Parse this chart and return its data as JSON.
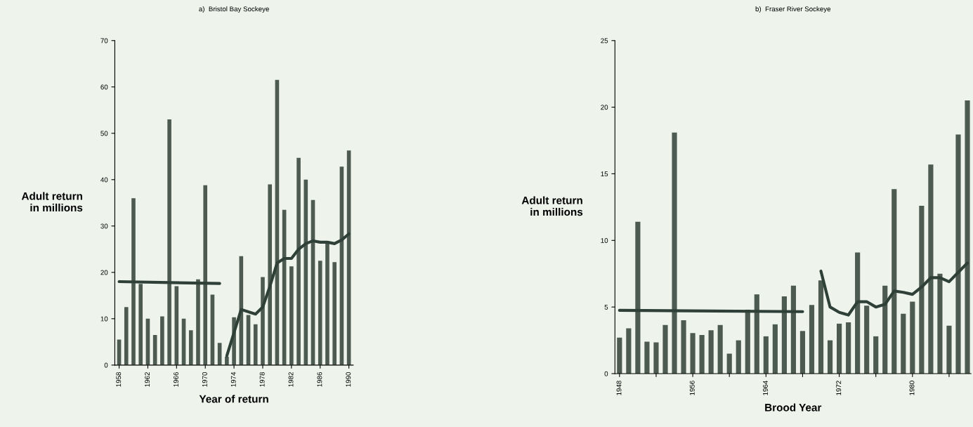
{
  "chart_data": [
    {
      "type": "bar",
      "title": "a)  Bristol Bay Sockeye",
      "xlabel": "Year of return",
      "ylabel": "Adult return\nin millions",
      "x": [
        1958,
        1959,
        1960,
        1961,
        1962,
        1963,
        1964,
        1965,
        1966,
        1967,
        1968,
        1969,
        1970,
        1971,
        1972,
        1973,
        1974,
        1975,
        1976,
        1977,
        1978,
        1979,
        1980,
        1981,
        1982,
        1983,
        1984,
        1985,
        1986,
        1987,
        1988,
        1989,
        1990
      ],
      "series": [
        {
          "color": "#4d5a52",
          "values": [
            5.5,
            12.5,
            36,
            17.5,
            10,
            6.5,
            10.5,
            53,
            17,
            10,
            7.5,
            18.5,
            38.8,
            15.2,
            4.8,
            1.8,
            10.3,
            23.5,
            10.8,
            8.8,
            19,
            39,
            61.5,
            33.5,
            21.3,
            44.7,
            40,
            35.6,
            22.5,
            26.2,
            22.2,
            42.8,
            46.3
          ]
        },
        {
          "type": "line",
          "color": "#2f4038",
          "x": [
            1958,
            1972
          ],
          "values": [
            18,
            17.6
          ]
        },
        {
          "type": "line",
          "color": "#2f4038",
          "x": [
            1973,
            1974,
            1975,
            1976,
            1977,
            1978,
            1979,
            1980,
            1981,
            1982,
            1983,
            1984,
            1985,
            1986,
            1987,
            1988,
            1989,
            1990
          ],
          "values": [
            2,
            7,
            12,
            11.5,
            11,
            12.5,
            17,
            22,
            23,
            23,
            25,
            26.2,
            26.8,
            26.5,
            26.5,
            26.2,
            27,
            28.3
          ]
        }
      ],
      "xlim": [
        1957.4,
        1990.6
      ],
      "xticks": [
        1958,
        1962,
        1966,
        1970,
        1974,
        1978,
        1982,
        1986,
        1990
      ],
      "ylim": [
        0,
        70
      ],
      "yticks": [
        0,
        10,
        20,
        30,
        40,
        50,
        60,
        70
      ],
      "grid": false,
      "legend": false
    },
    {
      "type": "bar",
      "title": "b)  Fraser River Sockeye",
      "xlabel": "Brood Year",
      "ylabel": "Adult return\nin millions",
      "x": [
        1948,
        1949,
        1950,
        1951,
        1952,
        1953,
        1954,
        1955,
        1956,
        1957,
        1958,
        1959,
        1960,
        1961,
        1962,
        1963,
        1964,
        1965,
        1966,
        1967,
        1968,
        1969,
        1970,
        1971,
        1972,
        1973,
        1974,
        1975,
        1976,
        1977,
        1978,
        1979,
        1980,
        1981,
        1982,
        1983,
        1984,
        1985,
        1986
      ],
      "series": [
        {
          "color": "#4d5a52",
          "values": [
            2.7,
            3.4,
            11.4,
            2.4,
            2.35,
            3.65,
            18.1,
            4,
            3.05,
            2.9,
            3.25,
            3.65,
            1.5,
            2.5,
            4.8,
            5.95,
            2.8,
            3.7,
            5.8,
            6.6,
            3.2,
            5.15,
            7,
            2.5,
            3.75,
            3.85,
            9.1,
            5.1,
            2.8,
            6.6,
            13.85,
            4.5,
            5.4,
            12.6,
            15.7,
            7.5,
            3.6,
            17.95,
            20.5
          ]
        },
        {
          "type": "line",
          "color": "#2f4038",
          "x": [
            1948,
            1968
          ],
          "values": [
            4.75,
            4.65
          ]
        },
        {
          "type": "line",
          "color": "#2f4038",
          "x": [
            1970,
            1971,
            1972,
            1973,
            1974,
            1975,
            1976,
            1977,
            1978,
            1979,
            1980,
            1981,
            1982,
            1983,
            1984,
            1985,
            1986
          ],
          "values": [
            7.7,
            5,
            4.6,
            4.4,
            5.4,
            5.4,
            5,
            5.2,
            6.2,
            6.1,
            5.95,
            6.5,
            7.2,
            7.2,
            6.9,
            7.6,
            8.3
          ]
        }
      ],
      "xlim": [
        1947.5,
        1986.4
      ],
      "xticks": [
        1948,
        {
          "value": 1952,
          "label": null
        },
        1956,
        {
          "value": 1960,
          "label": null
        },
        1964,
        {
          "value": 1968,
          "label": null
        },
        1972,
        {
          "value": 1976,
          "label": null
        },
        1980,
        {
          "value": 1984,
          "label": null
        }
      ],
      "ylim": [
        0,
        25
      ],
      "yticks": [
        0,
        5,
        10,
        15,
        20,
        25
      ],
      "grid": false,
      "legend": false
    }
  ]
}
